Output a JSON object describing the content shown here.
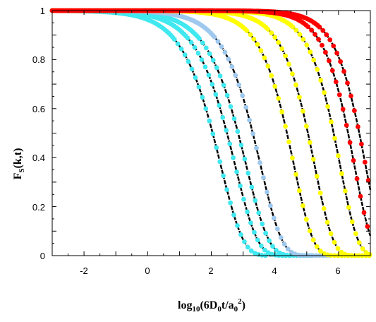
{
  "chart_data": {
    "type": "scatter",
    "xlabel": {
      "a": "log",
      "b": "10",
      "c": "(6D",
      "d": "0",
      "e": "t/a",
      "f": "0",
      "g": "2",
      "h": ")"
    },
    "ylabel": {
      "a": "F",
      "b": "S",
      "c": "(k,t)"
    },
    "xlim": [
      -3,
      7
    ],
    "ylim": [
      0,
      1
    ],
    "x_ticks": [
      "-2",
      "0",
      "2",
      "4",
      "6"
    ],
    "y_ticks": [
      "0",
      "0.2",
      "0.4",
      "0.6",
      "0.8",
      "1"
    ],
    "grid": false,
    "legend": "none",
    "colors": {
      "cyan": "#40e8f0",
      "lightblue": "#9ec8ee",
      "yellow": "#ffff00",
      "red": "#ff0000",
      "line": "#000000"
    },
    "series": [
      {
        "color": "cyan",
        "tau": 2.3,
        "beta": 0.62,
        "tail": 1.5
      },
      {
        "color": "cyan",
        "tau": 2.75,
        "beta": 0.62,
        "tail": 1.8
      },
      {
        "color": "cyan",
        "tau": 3.1,
        "beta": 0.62,
        "tail": 2.1
      },
      {
        "color": "lightblue",
        "tau": 3.55,
        "beta": 0.65,
        "tail": 2.2
      },
      {
        "color": "yellow",
        "tau": 4.6,
        "beta": 0.72,
        "tail": 3.2
      },
      {
        "color": "yellow",
        "tau": 5.25,
        "beta": 0.75,
        "tail": 3.8
      },
      {
        "color": "yellow",
        "tau": 6.05,
        "beta": 0.78,
        "tail": 4.6
      },
      {
        "color": "red",
        "tau": 6.5,
        "beta": 0.8,
        "tail": 5.5
      },
      {
        "color": "red",
        "tau": 6.85,
        "beta": 0.8,
        "tail": 5.9
      }
    ]
  }
}
